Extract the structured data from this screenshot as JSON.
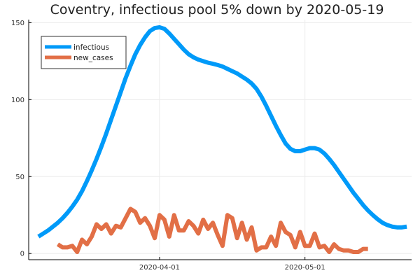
{
  "chart_data": {
    "type": "line",
    "title": "Coventry, infectious pool 5% down by 2020-05-19",
    "xlabel": "",
    "ylabel": "",
    "x_start": "2020-03-08",
    "x_end": "2020-05-19",
    "x_range": [
      "2020-03-05",
      "2020-05-23"
    ],
    "ylim": [
      -4,
      152
    ],
    "y_ticks": [
      0,
      50,
      100,
      150
    ],
    "y_tick_labels": [
      "0",
      "50",
      "100",
      "150"
    ],
    "x_ticks": [
      "2020-04-01",
      "2020-05-01"
    ],
    "x_tick_labels": [
      "2020-04-01",
      "2020-05-01"
    ],
    "grid": true,
    "legend_position": "top-left",
    "series": [
      {
        "name": "infectious",
        "color": "#009af9",
        "start": "2020-03-07",
        "values": [
          11,
          13,
          15,
          17.5,
          20,
          23,
          26.5,
          30.5,
          35,
          40.5,
          47,
          54,
          61.5,
          69.5,
          78,
          87,
          96,
          105,
          114,
          122,
          129.5,
          135.5,
          140.5,
          144.5,
          146.5,
          147,
          146,
          143,
          139.5,
          136,
          132.5,
          129.5,
          127.5,
          126,
          125,
          124,
          123.3,
          122.5,
          121.5,
          120,
          118.5,
          117,
          115,
          113,
          110.5,
          107,
          102,
          96,
          89.5,
          83,
          77,
          71.5,
          68,
          66.5,
          66.5,
          67.5,
          68.5,
          68.5,
          67.5,
          65,
          61.5,
          57.5,
          53,
          48.5,
          44,
          39.5,
          35.5,
          31.5,
          28,
          25,
          22.3,
          20,
          18.5,
          17.5,
          17,
          17,
          17.5
        ]
      },
      {
        "name": "new_cases",
        "color": "#e26f46",
        "start": "2020-03-11",
        "values": [
          6,
          4,
          4,
          5,
          1,
          9,
          6,
          11,
          19,
          16,
          19,
          13,
          18,
          17,
          23,
          29,
          27,
          20,
          23,
          18,
          10,
          25,
          22,
          11,
          25,
          15,
          15,
          21,
          18,
          13,
          22,
          16,
          20,
          12,
          5,
          25,
          23,
          10,
          20,
          9,
          17,
          2,
          4,
          4,
          11,
          5,
          20,
          14,
          12,
          4,
          14,
          5,
          5,
          13,
          4,
          5,
          1,
          6,
          3,
          2,
          2,
          1,
          1,
          3,
          3
        ]
      }
    ]
  }
}
